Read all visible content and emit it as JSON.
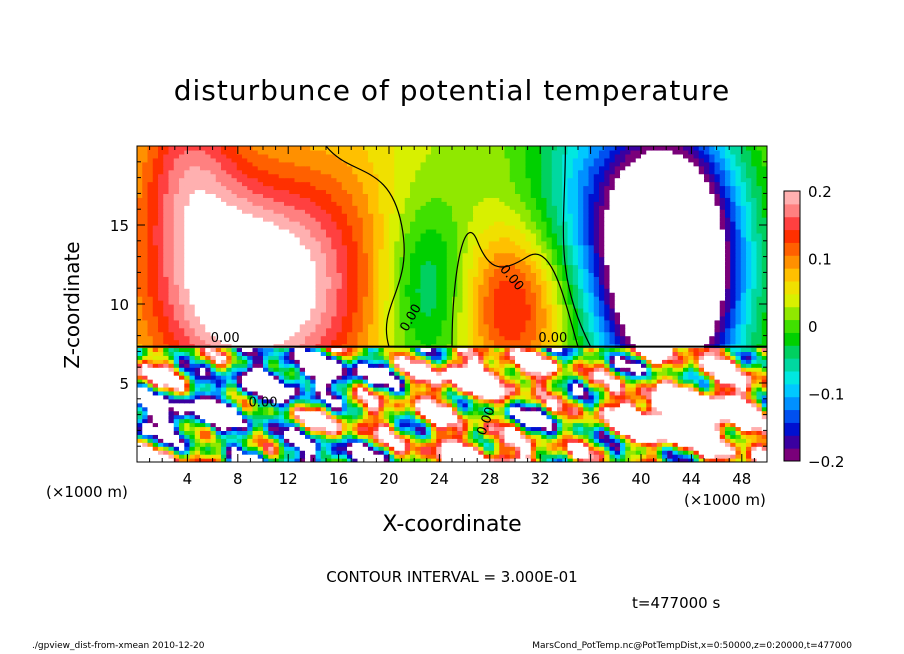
{
  "chart_data": {
    "type": "heatmap",
    "title": "disturbunce of potential temperature",
    "xlabel": "X-coordinate",
    "ylabel": "Z-coordinate",
    "x_unit": "(×1000 m)",
    "x_ticks": [
      4,
      8,
      12,
      16,
      20,
      24,
      28,
      32,
      36,
      40,
      44,
      48
    ],
    "xlim": [
      0,
      50
    ],
    "y_ticks": [
      5,
      10,
      15
    ],
    "ylim": [
      0,
      20
    ],
    "colorbar": {
      "ticks": [
        "0.2",
        "0.1",
        "0",
        "−0.1",
        "−0.2"
      ],
      "tick_values": [
        0.2,
        0.1,
        0,
        -0.1,
        -0.2
      ],
      "range": [
        -0.2,
        0.2
      ],
      "colors": [
        "#7a007a",
        "#3a00a0",
        "#0010d0",
        "#0050f0",
        "#0090ff",
        "#00c8ff",
        "#00e8e0",
        "#00d8a0",
        "#00d060",
        "#00d000",
        "#40e000",
        "#90e800",
        "#d8f000",
        "#f0e000",
        "#ffc000",
        "#ff9000",
        "#ff6000",
        "#ff3000",
        "#ff4040",
        "#ff8080",
        "#ffb0b0"
      ]
    },
    "contour_labels": [
      "0.00",
      "0.00",
      "0.00",
      "0.00",
      "0.00",
      "0.00"
    ],
    "contour_interval_text": "CONTOUR INTERVAL = 3.000E-01",
    "time_text": "t=477000 s"
  },
  "footer": {
    "left": "./gpview_dist-from-xmean  2010-12-20",
    "right": "MarsCond_PotTemp.nc@PotTempDist,x=0:50000,z=0:20000,t=477000"
  }
}
